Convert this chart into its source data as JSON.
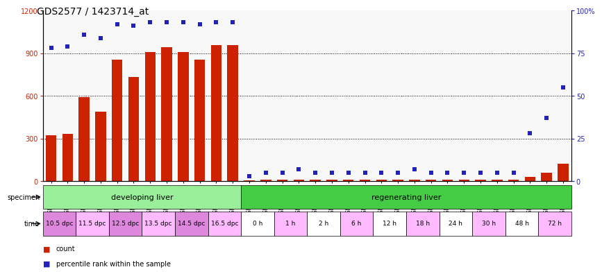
{
  "title": "GDS2577 / 1423714_at",
  "samples": [
    "GSM161128",
    "GSM161129",
    "GSM161130",
    "GSM161131",
    "GSM161132",
    "GSM161133",
    "GSM161134",
    "GSM161135",
    "GSM161136",
    "GSM161137",
    "GSM161138",
    "GSM161139",
    "GSM161108",
    "GSM161109",
    "GSM161110",
    "GSM161111",
    "GSM161112",
    "GSM161113",
    "GSM161114",
    "GSM161115",
    "GSM161116",
    "GSM161117",
    "GSM161118",
    "GSM161119",
    "GSM161120",
    "GSM161121",
    "GSM161122",
    "GSM161123",
    "GSM161124",
    "GSM161125",
    "GSM161126",
    "GSM161127"
  ],
  "counts": [
    320,
    330,
    590,
    490,
    855,
    730,
    910,
    940,
    910,
    855,
    955,
    955,
    5,
    10,
    8,
    10,
    8,
    8,
    8,
    8,
    8,
    8,
    10,
    8,
    8,
    8,
    8,
    8,
    10,
    30,
    60,
    120
  ],
  "percentile": [
    78,
    79,
    86,
    84,
    92,
    91,
    93,
    93,
    93,
    92,
    93,
    93,
    3,
    5,
    5,
    7,
    5,
    5,
    5,
    5,
    5,
    5,
    7,
    5,
    5,
    5,
    5,
    5,
    5,
    28,
    37,
    55
  ],
  "specimen_groups": [
    {
      "label": "developing liver",
      "start": 0,
      "end": 12,
      "color": "#99ee99"
    },
    {
      "label": "regenerating liver",
      "start": 12,
      "end": 32,
      "color": "#44cc44"
    }
  ],
  "time_groups": [
    {
      "label": "10.5 dpc",
      "start": 0,
      "end": 2,
      "color": "#dd88dd"
    },
    {
      "label": "11.5 dpc",
      "start": 2,
      "end": 4,
      "color": "#ffbbff"
    },
    {
      "label": "12.5 dpc",
      "start": 4,
      "end": 6,
      "color": "#dd88dd"
    },
    {
      "label": "13.5 dpc",
      "start": 6,
      "end": 8,
      "color": "#ffbbff"
    },
    {
      "label": "14.5 dpc",
      "start": 8,
      "end": 10,
      "color": "#dd88dd"
    },
    {
      "label": "16.5 dpc",
      "start": 10,
      "end": 12,
      "color": "#ffbbff"
    },
    {
      "label": "0 h",
      "start": 12,
      "end": 14,
      "color": "#ffffff"
    },
    {
      "label": "1 h",
      "start": 14,
      "end": 16,
      "color": "#ffbbff"
    },
    {
      "label": "2 h",
      "start": 16,
      "end": 18,
      "color": "#ffffff"
    },
    {
      "label": "6 h",
      "start": 18,
      "end": 20,
      "color": "#ffbbff"
    },
    {
      "label": "12 h",
      "start": 20,
      "end": 22,
      "color": "#ffffff"
    },
    {
      "label": "18 h",
      "start": 22,
      "end": 24,
      "color": "#ffbbff"
    },
    {
      "label": "24 h",
      "start": 24,
      "end": 26,
      "color": "#ffffff"
    },
    {
      "label": "30 h",
      "start": 26,
      "end": 28,
      "color": "#ffbbff"
    },
    {
      "label": "48 h",
      "start": 28,
      "end": 30,
      "color": "#ffffff"
    },
    {
      "label": "72 h",
      "start": 30,
      "end": 32,
      "color": "#ffbbff"
    }
  ],
  "bar_color": "#cc2200",
  "dot_color": "#2222bb",
  "ylim_left": [
    0,
    1200
  ],
  "ylim_right": [
    0,
    100
  ],
  "yticks_left": [
    0,
    300,
    600,
    900,
    1200
  ],
  "yticks_right": [
    0,
    25,
    50,
    75,
    100
  ],
  "grid_values": [
    300,
    600,
    900
  ],
  "bg_color": "#ffffff",
  "plot_bg": "#f8f8f8"
}
